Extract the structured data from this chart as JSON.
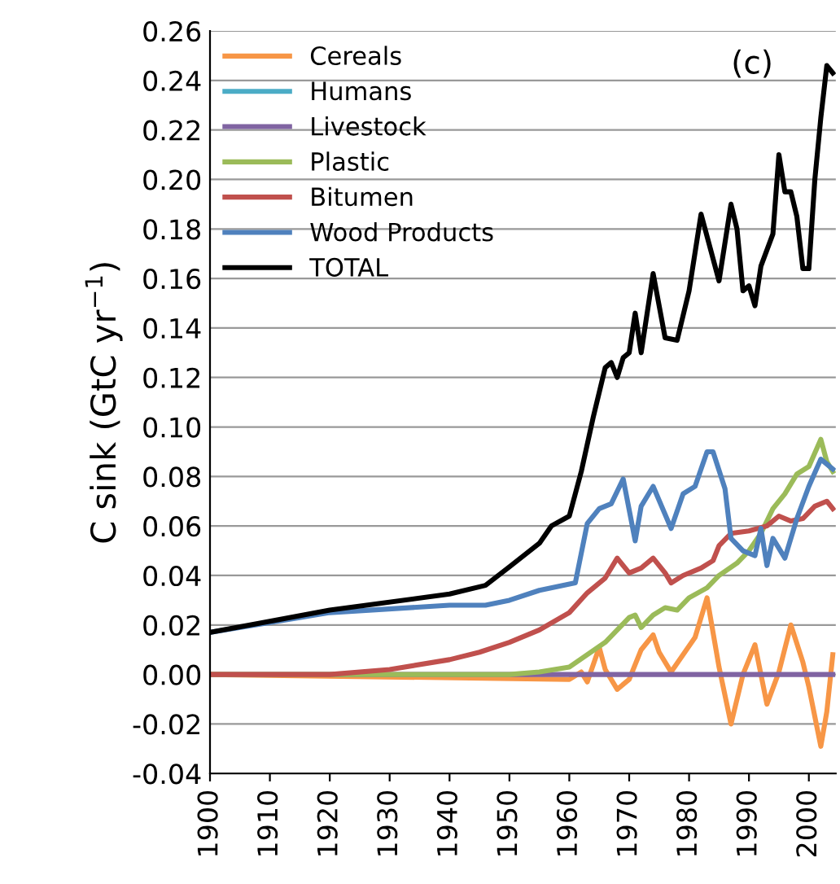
{
  "chart_data": {
    "type": "line",
    "ylabel": "C sink (GtC yr$^{−1}$)",
    "annotations": [
      "(c)"
    ],
    "xlim": [
      1900,
      2004.5
    ],
    "xticks": [
      1900,
      1910,
      1920,
      1930,
      1940,
      1950,
      1960,
      1970,
      1980,
      1990,
      2000
    ],
    "ylim": [
      -0.04,
      0.26
    ],
    "yticks": [
      {
        "value": -0.04,
        "label": "-0.04"
      },
      {
        "value": -0.02,
        "label": "-0.02"
      },
      {
        "value": 0,
        "label": "0.00"
      },
      {
        "value": 0.02,
        "label": "0.02"
      },
      {
        "value": 0.04,
        "label": "0.04"
      },
      {
        "value": 0.06,
        "label": "0.06"
      },
      {
        "value": 0.08,
        "label": "0.08"
      },
      {
        "value": 0.1,
        "label": "0.10"
      },
      {
        "value": 0.12,
        "label": "0.12"
      },
      {
        "value": 0.14,
        "label": "0.14"
      },
      {
        "value": 0.16,
        "label": "0.16"
      },
      {
        "value": 0.18,
        "label": "0.18"
      },
      {
        "value": 0.2,
        "label": "0.20"
      },
      {
        "value": 0.22,
        "label": "0.22"
      },
      {
        "value": 0.24,
        "label": "0.24"
      },
      {
        "value": 0.26,
        "label": "0.26"
      }
    ],
    "grid": "y",
    "legend": "top left",
    "series": [
      {
        "name": "Cereals",
        "color": "#f79646",
        "x": [
          1900,
          1960,
          1962,
          1963,
          1965,
          1966,
          1968,
          1970,
          1972,
          1974,
          1975,
          1977,
          1979,
          1981,
          1983,
          1985,
          1987,
          1989,
          1991,
          1993,
          1995,
          1997,
          1999,
          2000,
          2002,
          2003,
          2004
        ],
        "values": [
          0,
          -0.002,
          0.001,
          -0.003,
          0.011,
          0.002,
          -0.006,
          -0.002,
          0.01,
          0.016,
          0.009,
          0.001,
          0.008,
          0.015,
          0.031,
          0.003,
          -0.02,
          0.0,
          0.012,
          -0.012,
          0.001,
          0.02,
          0.005,
          -0.005,
          -0.029,
          -0.015,
          0.008
        ]
      },
      {
        "name": "Humans",
        "color": "#4bacc6"
      },
      {
        "name": "Livestock",
        "color": "#8064a2",
        "x": [
          1900,
          2004
        ],
        "values": [
          0,
          0
        ]
      },
      {
        "name": "Plastic",
        "color": "#9bbb59",
        "x": [
          1900,
          1950,
          1955,
          1960,
          1963,
          1966,
          1968,
          1970,
          1971,
          1972,
          1974,
          1976,
          1978,
          1980,
          1983,
          1985,
          1988,
          1990,
          1992,
          1994,
          1996,
          1998,
          2000,
          2002,
          2003,
          2004
        ],
        "values": [
          0,
          0,
          0.001,
          0.003,
          0.008,
          0.013,
          0.018,
          0.023,
          0.024,
          0.019,
          0.024,
          0.027,
          0.026,
          0.031,
          0.035,
          0.04,
          0.045,
          0.05,
          0.057,
          0.067,
          0.073,
          0.081,
          0.084,
          0.095,
          0.086,
          0.082
        ]
      },
      {
        "name": "Bitumen",
        "color": "#c0504d",
        "x": [
          1900,
          1920,
          1930,
          1940,
          1945,
          1950,
          1955,
          1960,
          1963,
          1966,
          1968,
          1970,
          1972,
          1974,
          1976,
          1977,
          1979,
          1982,
          1984,
          1985,
          1987,
          1990,
          1993,
          1995,
          1997,
          1999,
          2001,
          2003,
          2004
        ],
        "values": [
          0,
          0,
          0.002,
          0.006,
          0.009,
          0.013,
          0.018,
          0.025,
          0.033,
          0.039,
          0.047,
          0.041,
          0.043,
          0.047,
          0.041,
          0.037,
          0.04,
          0.043,
          0.046,
          0.052,
          0.057,
          0.058,
          0.06,
          0.064,
          0.062,
          0.063,
          0.068,
          0.07,
          0.067
        ]
      },
      {
        "name": "Wood Products",
        "color": "#4f81bd",
        "x": [
          1900,
          1920,
          1940,
          1946,
          1950,
          1955,
          1961,
          1963,
          1965,
          1967,
          1969,
          1971,
          1972,
          1974,
          1977,
          1979,
          1981,
          1983,
          1984,
          1986,
          1987,
          1989,
          1991,
          1992,
          1993,
          1994,
          1996,
          1998,
          2000,
          2002,
          2004
        ],
        "values": [
          0.017,
          0.025,
          0.028,
          0.028,
          0.03,
          0.034,
          0.037,
          0.061,
          0.067,
          0.069,
          0.079,
          0.054,
          0.068,
          0.076,
          0.059,
          0.073,
          0.076,
          0.09,
          0.09,
          0.075,
          0.055,
          0.05,
          0.048,
          0.059,
          0.044,
          0.055,
          0.047,
          0.063,
          0.076,
          0.087,
          0.083
        ]
      },
      {
        "name": "TOTAL",
        "color": "#000000",
        "x": [
          1900,
          1920,
          1940,
          1946,
          1950,
          1955,
          1957,
          1960,
          1962,
          1964,
          1966,
          1967,
          1968,
          1969,
          1970,
          1971,
          1972,
          1974,
          1976,
          1978,
          1980,
          1982,
          1985,
          1987,
          1988,
          1989,
          1990,
          1991,
          1992,
          1994,
          1995,
          1996,
          1997,
          1998,
          1999,
          2000,
          2001,
          2002,
          2003,
          2004
        ],
        "values": [
          0.017,
          0.026,
          0.0325,
          0.036,
          0.0435,
          0.053,
          0.06,
          0.064,
          0.082,
          0.104,
          0.124,
          0.126,
          0.12,
          0.128,
          0.13,
          0.146,
          0.13,
          0.162,
          0.136,
          0.135,
          0.155,
          0.186,
          0.159,
          0.19,
          0.18,
          0.155,
          0.157,
          0.149,
          0.165,
          0.178,
          0.21,
          0.195,
          0.195,
          0.185,
          0.164,
          0.164,
          0.2,
          0.225,
          0.246,
          0.243
        ]
      }
    ]
  }
}
